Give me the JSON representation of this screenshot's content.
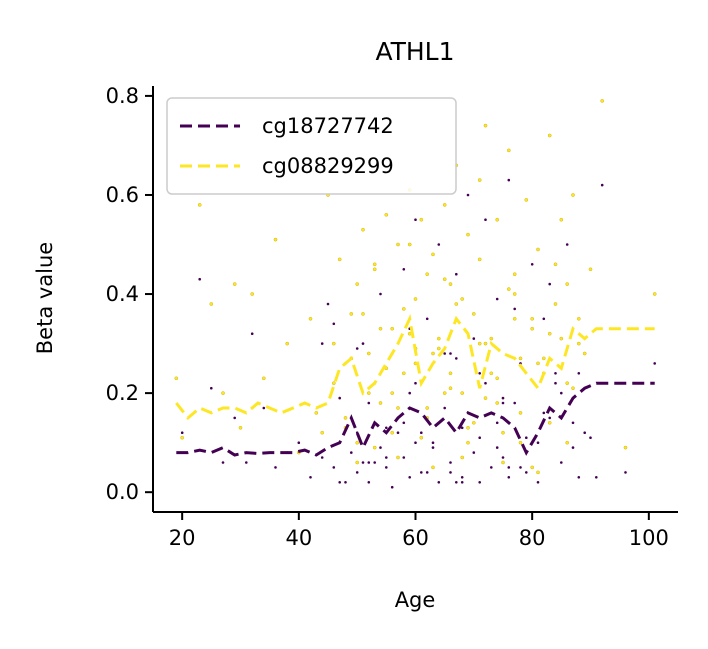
{
  "chart_data": {
    "type": "scatter",
    "title": "ATHL1",
    "xlabel": "Age",
    "ylabel": "Beta value",
    "xlim": [
      15,
      105
    ],
    "ylim": [
      -0.04,
      0.82
    ],
    "xticks": [
      "20",
      "40",
      "60",
      "80",
      "100"
    ],
    "yticks": [
      "0.0",
      "0.2",
      "0.4",
      "0.6",
      "0.8"
    ],
    "grid": false,
    "legend_position": "top-left",
    "series": [
      {
        "name": "cg18727742",
        "color": "#440154",
        "trend": {
          "x": [
            19,
            21,
            23,
            25,
            27,
            29,
            31,
            33,
            35,
            37,
            39,
            41,
            43,
            45,
            47,
            49,
            51,
            53,
            55,
            57,
            59,
            61,
            63,
            65,
            67,
            69,
            71,
            73,
            75,
            77,
            79,
            81,
            83,
            85,
            87,
            89,
            91,
            93,
            95,
            97,
            99,
            101
          ],
          "y": [
            0.08,
            0.08,
            0.085,
            0.08,
            0.09,
            0.075,
            0.08,
            0.078,
            0.08,
            0.08,
            0.08,
            0.085,
            0.075,
            0.09,
            0.1,
            0.15,
            0.09,
            0.14,
            0.12,
            0.15,
            0.17,
            0.16,
            0.13,
            0.15,
            0.12,
            0.16,
            0.15,
            0.16,
            0.15,
            0.13,
            0.08,
            0.12,
            0.17,
            0.15,
            0.19,
            0.21,
            0.22,
            0.22,
            0.22,
            0.22,
            0.22,
            0.22
          ]
        },
        "points": {
          "x": [
            20,
            23,
            25,
            27,
            29,
            31,
            32,
            34,
            36,
            38,
            40,
            42,
            44,
            45,
            46,
            47,
            48,
            48,
            49,
            50,
            50,
            51,
            52,
            52,
            53,
            54,
            54,
            55,
            56,
            56,
            57,
            58,
            58,
            59,
            60,
            60,
            61,
            62,
            62,
            63,
            64,
            64,
            65,
            66,
            66,
            67,
            68,
            68,
            69,
            70,
            70,
            71,
            72,
            72,
            73,
            74,
            74,
            75,
            76,
            76,
            77,
            78,
            78,
            79,
            80,
            81,
            82,
            83,
            84,
            85,
            86,
            87,
            88,
            89,
            91,
            92,
            96,
            101,
            46,
            49,
            53,
            57,
            61,
            65,
            69,
            73,
            77,
            81,
            85,
            55,
            59,
            63,
            67,
            71,
            75,
            79,
            83,
            87,
            47,
            51,
            55,
            59,
            63,
            67,
            71,
            75,
            79,
            83,
            88,
            44,
            52,
            60,
            68,
            76,
            84,
            50,
            58,
            66,
            74,
            82,
            90
          ],
          "y": [
            0.12,
            0.43,
            0.21,
            0.06,
            0.15,
            0.06,
            0.32,
            0.17,
            0.05,
            0.08,
            0.1,
            0.03,
            0.07,
            0.38,
            0.05,
            0.19,
            0.02,
            0.26,
            0.08,
            0.12,
            0.04,
            0.3,
            0.02,
            0.18,
            0.06,
            0.4,
            0.09,
            0.05,
            0.28,
            0.01,
            0.15,
            0.45,
            0.07,
            0.03,
            0.22,
            0.55,
            0.12,
            0.04,
            0.35,
            0.09,
            0.5,
            0.02,
            0.17,
            0.28,
            0.06,
            0.44,
            0.03,
            0.13,
            0.6,
            0.08,
            0.31,
            0.02,
            0.22,
            0.55,
            0.05,
            0.14,
            0.39,
            0.07,
            0.63,
            0.03,
            0.18,
            0.26,
            0.05,
            0.11,
            0.46,
            0.02,
            0.35,
            0.15,
            0.24,
            0.06,
            0.5,
            0.09,
            0.03,
            0.12,
            0.03,
            0.62,
            0.04,
            0.26,
            0.34,
            0.08,
            0.22,
            0.12,
            0.04,
            0.28,
            0.16,
            0.05,
            0.37,
            0.1,
            0.2,
            0.07,
            0.33,
            0.1,
            0.02,
            0.24,
            0.18,
            0.04,
            0.42,
            0.14,
            0.02,
            0.06,
            0.13,
            0.2,
            0.09,
            0.27,
            0.11,
            0.19,
            0.08,
            0.15,
            0.24,
            0.3,
            0.06,
            0.1,
            0.02,
            0.05,
            0.22,
            0.29,
            0.14,
            0.04,
            0.09,
            0.16,
            0.11
          ]
        }
      },
      {
        "name": "cg08829299",
        "color": "#fde725",
        "trend": {
          "x": [
            19,
            21,
            23,
            25,
            27,
            29,
            31,
            33,
            35,
            37,
            39,
            41,
            43,
            45,
            47,
            49,
            51,
            53,
            55,
            57,
            59,
            61,
            63,
            65,
            67,
            69,
            71,
            73,
            75,
            77,
            79,
            81,
            83,
            85,
            87,
            89,
            91,
            93,
            95,
            97,
            99,
            101
          ],
          "y": [
            0.18,
            0.15,
            0.17,
            0.16,
            0.17,
            0.17,
            0.16,
            0.18,
            0.17,
            0.16,
            0.17,
            0.18,
            0.17,
            0.18,
            0.25,
            0.27,
            0.2,
            0.22,
            0.26,
            0.3,
            0.35,
            0.22,
            0.26,
            0.29,
            0.35,
            0.32,
            0.21,
            0.3,
            0.28,
            0.27,
            0.24,
            0.21,
            0.27,
            0.25,
            0.33,
            0.31,
            0.33,
            0.33,
            0.33,
            0.33,
            0.33,
            0.33
          ]
        },
        "points": {
          "x": [
            19,
            20,
            23,
            25,
            27,
            29,
            30,
            32,
            34,
            36,
            38,
            40,
            42,
            43,
            45,
            46,
            47,
            48,
            49,
            50,
            51,
            52,
            53,
            54,
            55,
            56,
            57,
            58,
            59,
            60,
            61,
            62,
            63,
            64,
            65,
            66,
            67,
            68,
            69,
            70,
            71,
            72,
            73,
            74,
            75,
            76,
            77,
            78,
            79,
            80,
            81,
            82,
            83,
            84,
            85,
            86,
            87,
            88,
            90,
            92,
            96,
            101,
            46,
            48,
            50,
            52,
            54,
            56,
            58,
            60,
            62,
            64,
            66,
            68,
            70,
            72,
            74,
            76,
            78,
            80,
            82,
            84,
            86,
            88,
            47,
            49,
            51,
            53,
            55,
            57,
            59,
            61,
            63,
            65,
            67,
            69,
            71,
            73,
            75,
            77,
            79,
            81,
            83,
            85,
            87,
            89,
            44,
            50,
            56,
            62,
            68,
            74,
            80,
            86,
            53,
            59,
            65,
            71,
            77,
            83,
            57,
            63,
            69,
            75,
            81,
            60,
            66,
            72,
            78
          ],
          "y": [
            0.23,
            0.11,
            0.58,
            0.38,
            0.2,
            0.42,
            0.13,
            0.4,
            0.23,
            0.51,
            0.3,
            0.08,
            0.35,
            0.16,
            0.6,
            0.22,
            0.47,
            0.13,
            0.36,
            0.1,
            0.53,
            0.28,
            0.45,
            0.18,
            0.56,
            0.33,
            0.5,
            0.24,
            0.61,
            0.39,
            0.55,
            0.17,
            0.48,
            0.29,
            0.58,
            0.42,
            0.66,
            0.2,
            0.52,
            0.36,
            0.63,
            0.74,
            0.31,
            0.55,
            0.19,
            0.69,
            0.44,
            0.27,
            0.59,
            0.35,
            0.49,
            0.24,
            0.72,
            0.38,
            0.55,
            0.42,
            0.6,
            0.3,
            0.45,
            0.79,
            0.09,
            0.4,
            0.3,
            0.15,
            0.42,
            0.2,
            0.33,
            0.12,
            0.37,
            0.26,
            0.44,
            0.31,
            0.21,
            0.39,
            0.14,
            0.3,
            0.23,
            0.41,
            0.16,
            0.33,
            0.27,
            0.46,
            0.22,
            0.35,
            0.19,
            0.27,
            0.36,
            0.09,
            0.25,
            0.17,
            0.32,
            0.11,
            0.28,
            0.2,
            0.38,
            0.13,
            0.3,
            0.24,
            0.12,
            0.35,
            0.08,
            0.26,
            0.14,
            0.31,
            0.21,
            0.28,
            0.12,
            0.06,
            0.2,
            0.15,
            0.07,
            0.18,
            0.05,
            0.1,
            0.46,
            0.5,
            0.43,
            0.47,
            0.4,
            0.32,
            0.07,
            0.05,
            0.1,
            0.06,
            0.04,
            0.29,
            0.24,
            0.19,
            0.1
          ]
        }
      }
    ]
  }
}
